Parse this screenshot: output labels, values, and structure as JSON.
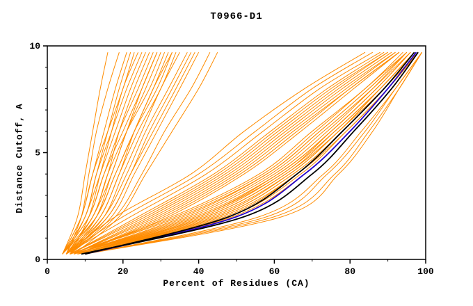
{
  "chart_data": {
    "type": "line",
    "title": "T0966-D1",
    "xlabel": "Percent of Residues (CA)",
    "ylabel": "Distance Cutoff, A",
    "xlim": [
      0,
      100
    ],
    "ylim": [
      0,
      10
    ],
    "x_major_ticks": [
      0,
      20,
      40,
      60,
      80,
      100
    ],
    "x_minor_ticks": [
      10,
      30,
      50,
      70,
      90
    ],
    "y_major_ticks": [
      0,
      5,
      10
    ],
    "y_minor_ticks": [
      1,
      2,
      3,
      4,
      6,
      7,
      8,
      9
    ],
    "grid": "off",
    "legend": "none",
    "y_levels": [
      0.25,
      2,
      4,
      6,
      8,
      9.7
    ],
    "curve_groups": [
      {
        "name": "model-curves",
        "color": "#ff8c00",
        "width": 1,
        "curves_x_at_y_levels": [
          [
            8,
            40,
            62,
            75,
            87,
            96
          ],
          [
            9,
            45,
            65,
            78,
            89,
            97
          ],
          [
            7,
            38,
            60,
            74,
            86,
            95
          ],
          [
            10,
            50,
            68,
            80,
            90,
            98
          ],
          [
            6,
            35,
            58,
            72,
            85,
            95
          ],
          [
            8,
            42,
            63,
            76,
            88,
            97
          ],
          [
            9,
            48,
            67,
            79,
            90,
            98
          ],
          [
            7,
            37,
            59,
            73,
            86,
            96
          ],
          [
            10,
            58,
            74,
            84,
            92,
            99
          ],
          [
            8,
            44,
            64,
            77,
            88,
            97
          ],
          [
            6,
            33,
            56,
            70,
            84,
            94
          ],
          [
            9,
            46,
            66,
            78,
            89,
            98
          ],
          [
            7,
            39,
            61,
            75,
            87,
            96
          ],
          [
            10,
            60,
            76,
            85,
            93,
            99
          ],
          [
            8,
            41,
            62,
            76,
            88,
            97
          ],
          [
            9,
            47,
            66,
            79,
            90,
            98
          ],
          [
            7,
            36,
            58,
            72,
            85,
            95
          ],
          [
            8,
            43,
            64,
            77,
            89,
            97
          ],
          [
            10,
            56,
            73,
            83,
            92,
            99
          ],
          [
            6,
            34,
            57,
            71,
            84,
            95
          ],
          [
            9,
            49,
            68,
            80,
            90,
            98
          ],
          [
            8,
            45,
            65,
            78,
            89,
            97
          ],
          [
            7,
            40,
            61,
            75,
            87,
            96
          ],
          [
            10,
            62,
            77,
            86,
            93,
            99
          ],
          [
            8,
            42,
            63,
            77,
            88,
            97
          ],
          [
            6,
            25,
            45,
            60,
            75,
            90
          ],
          [
            7,
            28,
            48,
            63,
            78,
            92
          ],
          [
            5,
            22,
            42,
            57,
            72,
            88
          ],
          [
            8,
            30,
            50,
            65,
            80,
            93
          ],
          [
            6,
            24,
            44,
            59,
            74,
            89
          ],
          [
            7,
            27,
            47,
            62,
            77,
            91
          ],
          [
            5,
            20,
            40,
            55,
            70,
            86
          ],
          [
            8,
            32,
            52,
            67,
            81,
            93
          ],
          [
            6,
            26,
            46,
            61,
            76,
            90
          ],
          [
            7,
            29,
            49,
            64,
            79,
            92
          ],
          [
            5,
            18,
            38,
            52,
            68,
            84
          ],
          [
            8,
            31,
            51,
            66,
            80,
            93
          ],
          [
            4,
            8,
            10,
            12,
            14,
            16
          ],
          [
            5,
            9,
            11,
            13,
            16,
            19
          ],
          [
            4,
            10,
            13,
            16,
            19,
            22
          ],
          [
            6,
            11,
            14,
            17,
            20,
            24
          ],
          [
            5,
            12,
            16,
            19,
            23,
            27
          ],
          [
            4,
            9,
            12,
            15,
            18,
            21
          ],
          [
            6,
            13,
            17,
            21,
            25,
            29
          ],
          [
            5,
            10,
            14,
            18,
            22,
            26
          ],
          [
            4,
            11,
            15,
            19,
            24,
            28
          ],
          [
            6,
            14,
            19,
            23,
            28,
            32
          ],
          [
            5,
            12,
            17,
            21,
            26,
            30
          ],
          [
            4,
            10,
            13,
            17,
            21,
            25
          ],
          [
            6,
            15,
            20,
            25,
            30,
            35
          ],
          [
            5,
            13,
            18,
            23,
            28,
            33
          ],
          [
            4,
            9,
            12,
            16,
            20,
            23
          ],
          [
            6,
            16,
            22,
            27,
            33,
            38
          ],
          [
            5,
            14,
            19,
            24,
            30,
            34
          ],
          [
            4,
            11,
            15,
            20,
            25,
            29
          ],
          [
            6,
            17,
            23,
            29,
            35,
            40
          ],
          [
            5,
            15,
            21,
            26,
            32,
            37
          ],
          [
            4,
            12,
            16,
            21,
            27,
            31
          ],
          [
            6,
            18,
            25,
            31,
            38,
            43
          ],
          [
            5,
            16,
            22,
            28,
            34,
            39
          ],
          [
            4,
            13,
            18,
            23,
            29,
            33
          ],
          [
            7,
            19,
            26,
            33,
            40,
            45
          ]
        ]
      },
      {
        "name": "reference-curve",
        "color": "#2200cc",
        "width": 1.8,
        "curves_x_at_y_levels": [
          [
            10,
            50,
            68,
            80,
            90,
            97.5
          ]
        ]
      },
      {
        "name": "best-model-curves",
        "color": "#000000",
        "width": 1.8,
        "curves_x_at_y_levels": [
          [
            10,
            48,
            66,
            78,
            89,
            97
          ],
          [
            9,
            52,
            70,
            81,
            91,
            98
          ]
        ]
      }
    ]
  }
}
